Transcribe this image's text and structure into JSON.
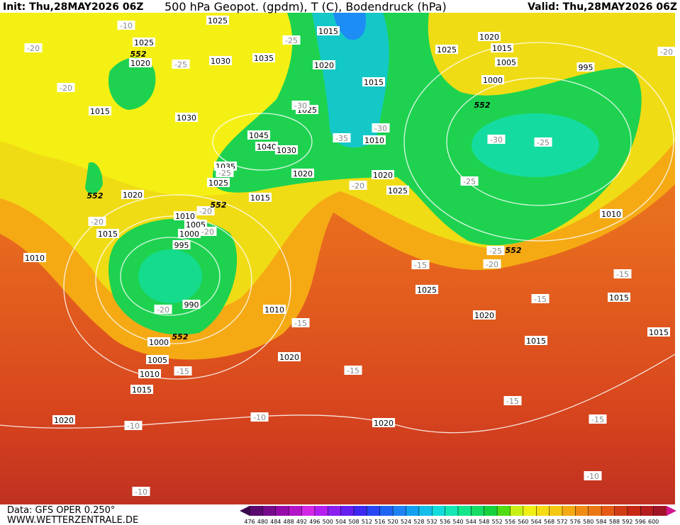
{
  "header": {
    "init": "Init: Thu,28MAY2026 06Z",
    "title": "500 hPa Geopot. (gpdm), T (C), Bodendruck (hPa)",
    "valid": "Valid: Thu,28MAY2026 06Z"
  },
  "footer": {
    "data_source": "Data: GFS OPER 0.250°",
    "website": "WWW.WETTERZENTRALE.DE"
  },
  "colorbar": {
    "ticks": [
      476,
      480,
      484,
      488,
      492,
      496,
      500,
      504,
      508,
      512,
      516,
      520,
      524,
      528,
      532,
      536,
      540,
      544,
      548,
      552,
      556,
      560,
      564,
      568,
      572,
      576,
      580,
      584,
      588,
      592,
      596,
      600
    ]
  },
  "map": {
    "pressure_labels": [
      "1025",
      "1015",
      "1025",
      "1020",
      "1030",
      "1035",
      "1020",
      "1015",
      "1020",
      "1015",
      "1025",
      "1005",
      "995",
      "1000",
      "1025",
      "1015",
      "1030",
      "1045",
      "1040",
      "1030",
      "1010",
      "1035",
      "1025",
      "1020",
      "1020",
      "1025",
      "1015",
      "1020",
      "1015",
      "1010",
      "1010",
      "1005",
      "1000",
      "995",
      "990",
      "1010",
      "1025",
      "1010",
      "1020",
      "1015",
      "1015",
      "1015",
      "1000",
      "1005",
      "1010",
      "1020",
      "1015",
      "1020",
      "1020"
    ],
    "temperature_labels": [
      "-10",
      "-20",
      "-25",
      "-20",
      "-25",
      "-30",
      "-30",
      "-35",
      "-30",
      "-25",
      "-25",
      "-20",
      "-25",
      "-20",
      "-20",
      "-20",
      "-20",
      "-25",
      "-20",
      "-15",
      "-15",
      "-15",
      "-15",
      "-15",
      "-15",
      "-15",
      "-15",
      "-10",
      "-10",
      "-10",
      "-10",
      "-20"
    ],
    "height_labels": [
      "552",
      "552",
      "552",
      "552",
      "552",
      "552"
    ]
  }
}
